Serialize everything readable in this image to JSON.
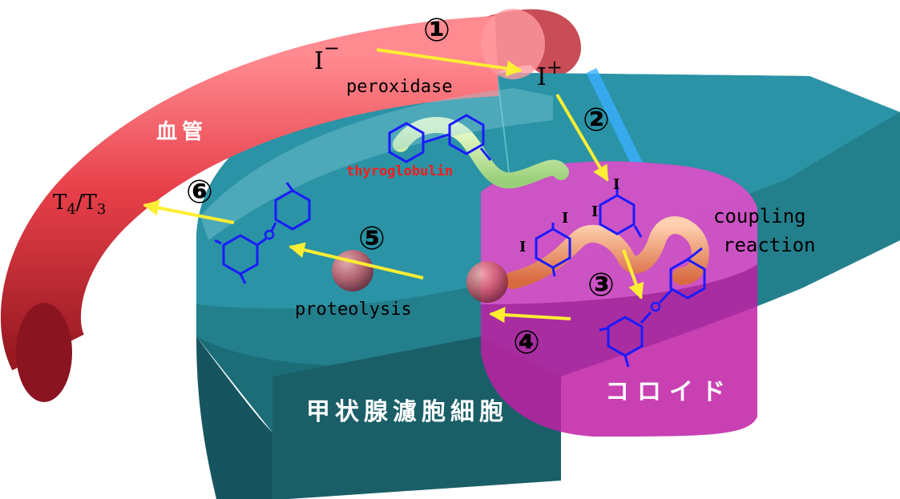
{
  "colors": {
    "vessel": "#e8404a",
    "cell_top": "#2a93a6",
    "cell_side": "#1b6d78",
    "colloid": "#c01fa5",
    "arrow": "#ffee33",
    "ring": "#1a1aff",
    "thyroglobulin_text": "#ff1a1a"
  },
  "labels": {
    "vessel": "血管",
    "cell": "甲状腺濾胞細胞",
    "colloid": "コロイド",
    "iodide": "I",
    "iodide_charge": "−",
    "iodine_plus": "I",
    "iodine_plus_charge": "+",
    "peroxidase": "peroxidase",
    "thyroglobulin": "thyroglobulin",
    "coupling_line1": "coupling",
    "coupling_line2": "reaction",
    "proteolysis": "proteolysis",
    "t4": "T",
    "t4_sub": "4",
    "slash": "/T",
    "t3_sub": "3"
  },
  "steps": [
    "①",
    "②",
    "③",
    "④",
    "⑤",
    "⑥"
  ],
  "iodine_atom": "I"
}
